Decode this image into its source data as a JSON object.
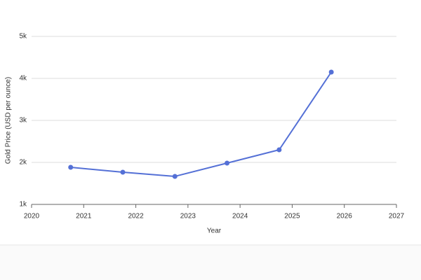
{
  "chart_data": {
    "type": "line",
    "x_label": "Year",
    "y_label": "Gold Price (USD per ounce)",
    "x": [
      2020.75,
      2021.75,
      2022.75,
      2023.75,
      2024.75,
      2025.75
    ],
    "series": [
      {
        "name": "Gold Price",
        "color": "#5470d6",
        "values": [
          1883,
          1767,
          1667,
          1983,
          2300,
          4150
        ]
      }
    ],
    "xlim": [
      2020,
      2027
    ],
    "xticks": [
      2020,
      2021,
      2022,
      2023,
      2024,
      2025,
      2026,
      2027
    ],
    "ylim": [
      1000,
      5000
    ],
    "yticks": [
      {
        "value": 1000,
        "label": "1k"
      },
      {
        "value": 2000,
        "label": "2k"
      },
      {
        "value": 3000,
        "label": "3k"
      },
      {
        "value": 4000,
        "label": "4k"
      },
      {
        "value": 5000,
        "label": "5k"
      }
    ],
    "grid": true
  }
}
